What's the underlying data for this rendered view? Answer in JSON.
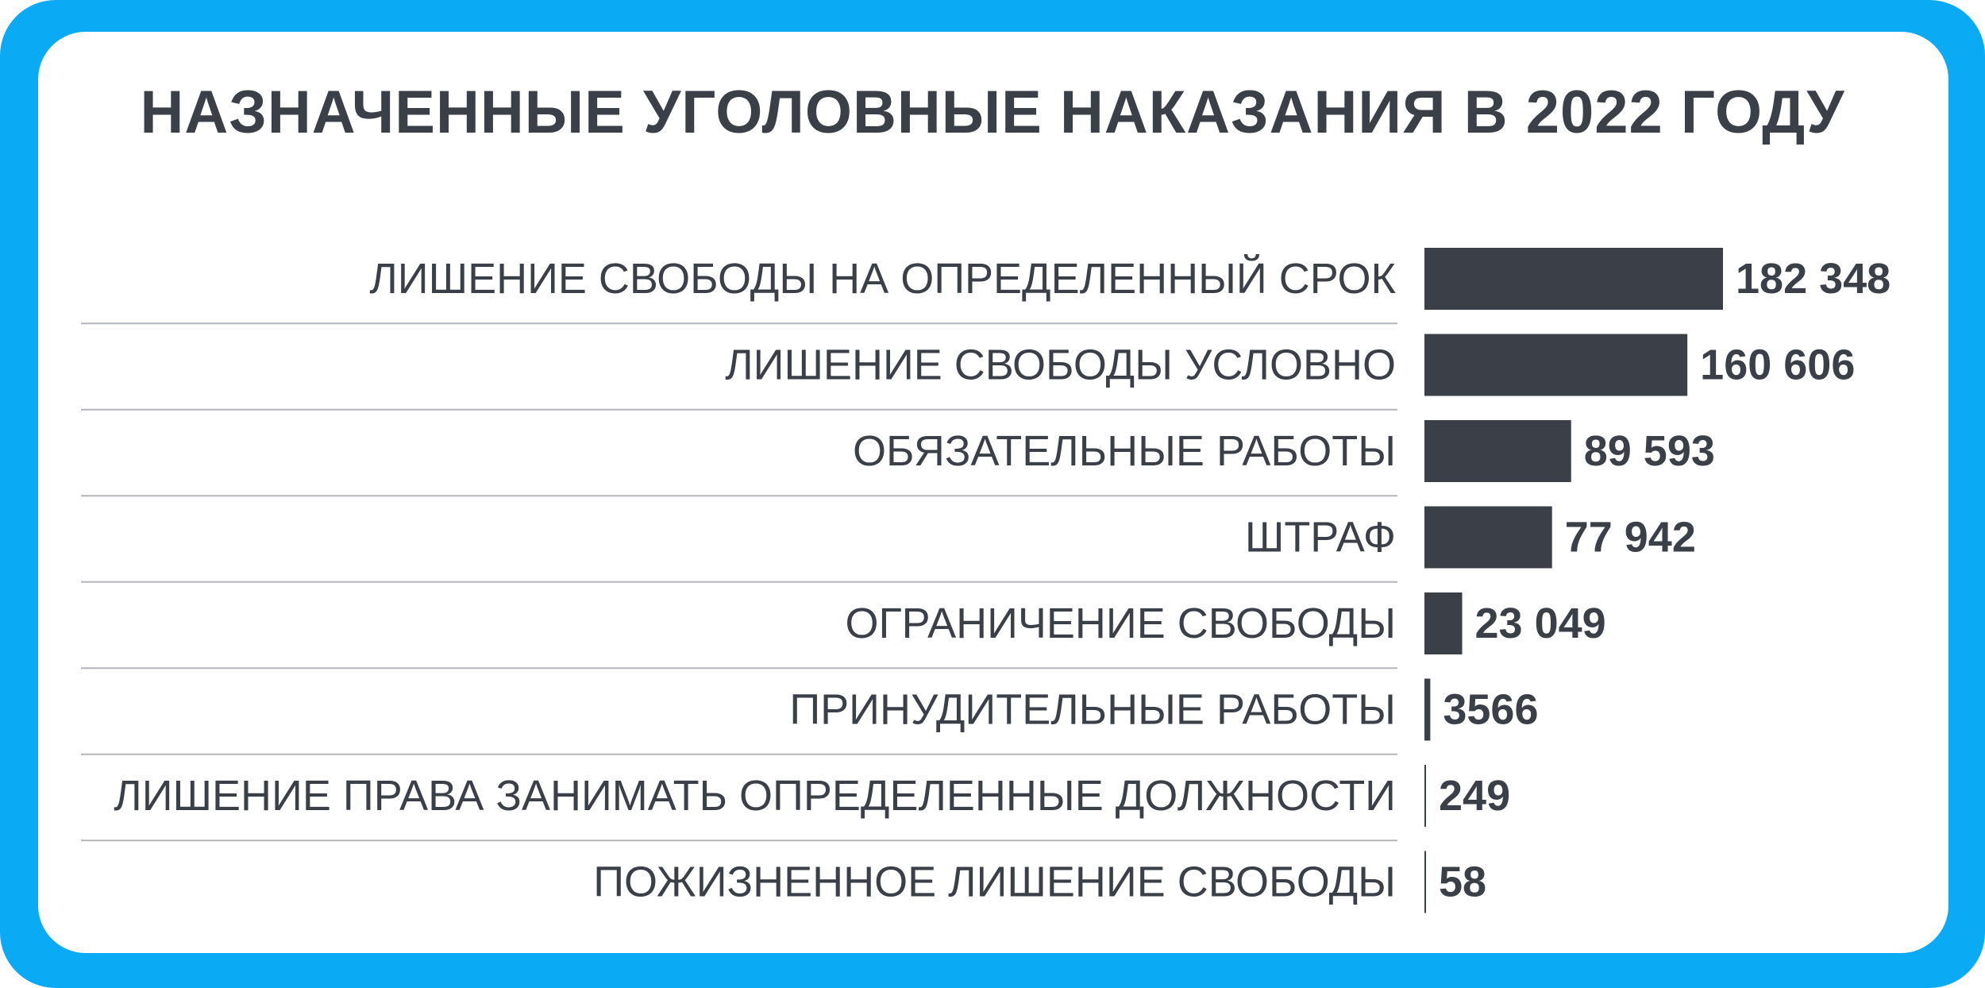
{
  "chart_data": {
    "type": "bar",
    "orientation": "horizontal",
    "title": "НАЗНАЧЕННЫЕ УГОЛОВНЫЕ НАКАЗАНИЯ В 2022 ГОДУ",
    "categories": [
      "ЛИШЕНИЕ СВОБОДЫ НА ОПРЕДЕЛЕННЫЙ СРОК",
      "ЛИШЕНИЕ СВОБОДЫ УСЛОВНО",
      "ОБЯЗАТЕЛЬНЫЕ РАБОТЫ",
      "ШТРАФ",
      "ОГРАНИЧЕНИЕ СВОБОДЫ",
      "ПРИНУДИТЕЛЬНЫЕ РАБОТЫ",
      "ЛИШЕНИЕ ПРАВА ЗАНИМАТЬ ОПРЕДЕЛЕННЫЕ ДОЛЖНОСТИ",
      "ПОЖИЗНЕННОЕ ЛИШЕНИЕ СВОБОДЫ"
    ],
    "values": [
      182348,
      160606,
      89593,
      77942,
      23049,
      3566,
      249,
      58
    ],
    "value_labels": [
      "182 348",
      "160 606",
      "89 593",
      "77 942",
      "23 049",
      "3566",
      "249",
      "58"
    ],
    "xlim": [
      0,
      182348
    ],
    "grid": false,
    "legend": "none",
    "colors": {
      "frame": "#0aaaf5",
      "bar": "#3b3f48",
      "text": "#3b3f48",
      "separator": "#b3b6bb"
    }
  }
}
